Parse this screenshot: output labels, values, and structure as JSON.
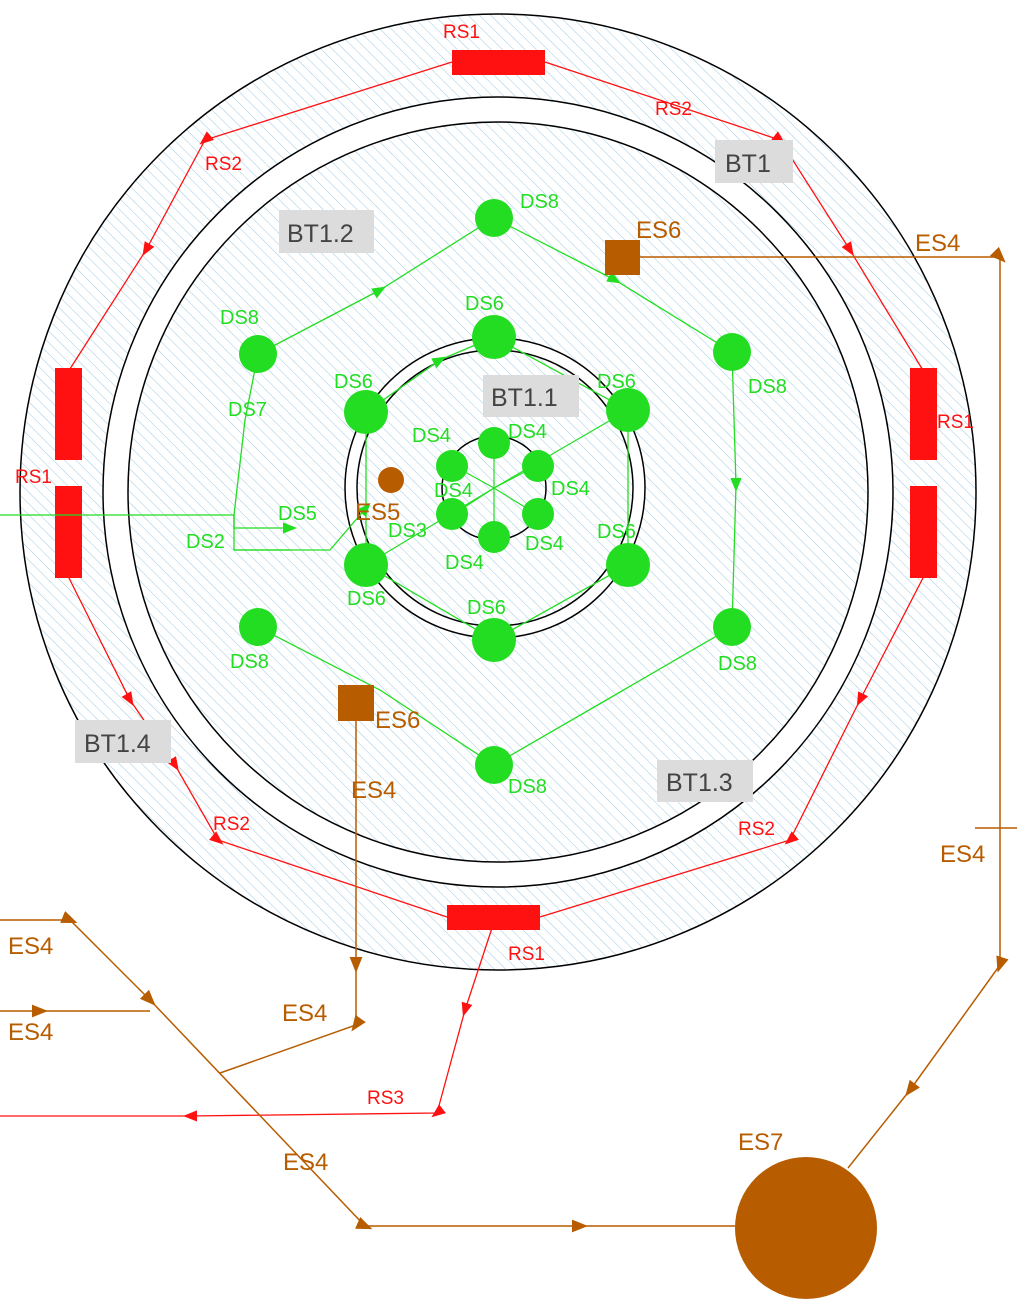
{
  "colors": {
    "distribution": "#22dd22",
    "return": "#ff1111",
    "external": "#b85c00",
    "hatch": "#9ccbe6",
    "tag_box": "#dcdcdc"
  },
  "area_tags": {
    "outer": "BT1",
    "upper_left": "BT1.2",
    "center": "BT1.1",
    "lower_right": "BT1.3",
    "lower_left": "BT1.4"
  },
  "red_labels": {
    "rs1_top": "RS1",
    "rs2_top_right": "RS2",
    "rs2_top_left": "RS2",
    "rs1_right": "RS1",
    "rs1_left": "RS1",
    "rs2_bottom_left": "RS2",
    "rs2_bottom_right": "RS2",
    "rs1_bottom": "RS1",
    "rs3": "RS3"
  },
  "green_labels": {
    "ds8_top": "DS8",
    "ds8_upper_left": "DS8",
    "ds8_upper_right": "DS8",
    "ds8_lower_left": "DS8",
    "ds8_lower_right": "DS8",
    "ds8_bottom": "DS8",
    "ds7": "DS7",
    "ds6_top": "DS6",
    "ds6_upper_left": "DS6",
    "ds6_upper_right": "DS6",
    "ds6_lower_left": "DS6",
    "ds6_lower_right": "DS6",
    "ds6_bottom": "DS6",
    "ds5": "DS5",
    "ds4_a": "DS4",
    "ds4_b": "DS4",
    "ds4_c": "DS4",
    "ds4_d": "DS4",
    "ds4_e": "DS4",
    "ds4_f": "DS4",
    "ds3": "DS3",
    "ds2": "DS2"
  },
  "brown_labels": {
    "es6_top": "ES6",
    "es6_bottom": "ES6",
    "es5": "ES5",
    "es4_top_right": "ES4",
    "es4_right": "ES4",
    "es4_center": "ES4",
    "es4_left_upper": "ES4",
    "es4_left_lower": "ES4",
    "es4_mid": "ES4",
    "es4_bottom": "ES4",
    "es7": "ES7"
  }
}
